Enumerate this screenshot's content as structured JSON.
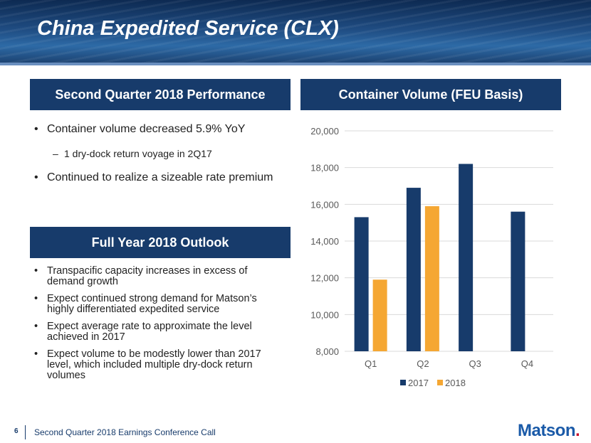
{
  "title": "China Expedited Service (CLX)",
  "performance": {
    "header": "Second Quarter 2018 Performance",
    "bullets": [
      "Container volume decreased 5.9% YoY",
      "1 dry-dock return voyage in 2Q17",
      "Continued to realize a sizeable rate premium"
    ]
  },
  "outlook": {
    "header": "Full Year 2018 Outlook",
    "bullets": [
      "Transpacific capacity increases in excess of demand growth",
      "Expect continued strong demand for Matson’s highly differentiated expedited service",
      "Expect average rate to approximate the level achieved in 2017",
      "Expect volume to be modestly lower than 2017 level, which included multiple dry-dock return volumes"
    ]
  },
  "chart_header": "Container Volume (FEU Basis)",
  "chart_data": {
    "type": "bar",
    "title": "Container Volume (FEU Basis)",
    "categories": [
      "Q1",
      "Q2",
      "Q3",
      "Q4"
    ],
    "series": [
      {
        "name": "2017",
        "color": "#173b6b",
        "values": [
          15300,
          16900,
          18200,
          15600
        ]
      },
      {
        "name": "2018",
        "color": "#f5a733",
        "values": [
          11900,
          15900,
          null,
          null
        ]
      }
    ],
    "ylim": [
      8000,
      20000
    ],
    "yticks": [
      "8,000",
      "10,000",
      "12,000",
      "14,000",
      "16,000",
      "18,000",
      "20,000"
    ],
    "ytick_values": [
      8000,
      10000,
      12000,
      14000,
      16000,
      18000,
      20000
    ],
    "grid": true,
    "legend": "bottom",
    "xlabel": "",
    "ylabel": ""
  },
  "footer": {
    "page_number": "6",
    "text": "Second Quarter 2018 Earnings Conference Call",
    "logo": "Matson",
    "logo_dot": "."
  }
}
